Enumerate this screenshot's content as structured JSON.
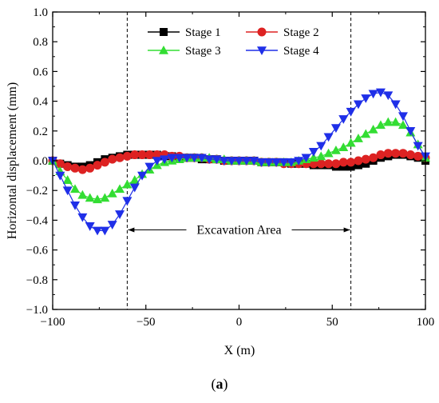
{
  "panel_label": {
    "open": "(",
    "letter": "a",
    "close": ")"
  },
  "chart_data": {
    "type": "line",
    "xlabel": "X (m)",
    "ylabel": "Horizontal displacement (mm)",
    "xlim": [
      -100,
      100
    ],
    "ylim": [
      -1.0,
      1.0
    ],
    "x_ticks": [
      -100,
      -50,
      0,
      50,
      100
    ],
    "x_tick_labels": [
      "−100",
      "−50",
      "0",
      "50",
      "100"
    ],
    "y_ticks": [
      1.0,
      0.8,
      0.6,
      0.4,
      0.2,
      0.0,
      -0.2,
      -0.4,
      -0.6,
      -0.8,
      -1.0
    ],
    "y_tick_labels": [
      "1.0",
      "0.8",
      "0.6",
      "0.4",
      "0.2",
      "0.0",
      "−0.2",
      "−0.4",
      "−0.6",
      "−0.8",
      "−1.0"
    ],
    "grid": false,
    "legend_position": "top-right",
    "annotation": {
      "text": "Excavation Area",
      "x_from": -60,
      "x_to": 60,
      "y": -0.465
    },
    "reference_lines_x": [
      -60,
      60
    ],
    "x": [
      -100,
      -96,
      -92,
      -88,
      -84,
      -80,
      -76,
      -72,
      -68,
      -64,
      -60,
      -56,
      -52,
      -48,
      -44,
      -40,
      -36,
      -32,
      -28,
      -24,
      -20,
      -16,
      -12,
      -8,
      -4,
      0,
      4,
      8,
      12,
      16,
      20,
      24,
      28,
      32,
      36,
      40,
      44,
      48,
      52,
      56,
      60,
      64,
      68,
      72,
      76,
      80,
      84,
      88,
      92,
      96,
      100
    ],
    "series": [
      {
        "name": "Stage 1",
        "color": "#000000",
        "marker": "square",
        "values": [
          0.0,
          -0.02,
          -0.03,
          -0.04,
          -0.04,
          -0.03,
          -0.01,
          0.01,
          0.02,
          0.03,
          0.04,
          0.04,
          0.04,
          0.04,
          0.04,
          0.03,
          0.03,
          0.02,
          0.02,
          0.02,
          0.01,
          0.01,
          0.01,
          0.0,
          0.0,
          0.0,
          0.0,
          0.0,
          -0.01,
          -0.01,
          -0.01,
          -0.01,
          -0.02,
          -0.02,
          -0.02,
          -0.03,
          -0.03,
          -0.03,
          -0.04,
          -0.04,
          -0.04,
          -0.03,
          -0.02,
          0.0,
          0.02,
          0.03,
          0.04,
          0.04,
          0.03,
          0.02,
          0.0
        ]
      },
      {
        "name": "Stage 2",
        "color": "#dd2222",
        "marker": "circle",
        "values": [
          0.0,
          -0.02,
          -0.04,
          -0.05,
          -0.06,
          -0.05,
          -0.03,
          -0.01,
          0.01,
          0.02,
          0.03,
          0.04,
          0.04,
          0.04,
          0.04,
          0.04,
          0.03,
          0.03,
          0.02,
          0.02,
          0.02,
          0.01,
          0.01,
          0.0,
          0.0,
          0.0,
          0.0,
          0.0,
          -0.01,
          -0.01,
          -0.01,
          -0.02,
          -0.02,
          -0.02,
          -0.02,
          -0.02,
          -0.02,
          -0.02,
          -0.02,
          -0.01,
          -0.01,
          0.0,
          0.01,
          0.02,
          0.04,
          0.05,
          0.05,
          0.05,
          0.04,
          0.03,
          0.02
        ]
      },
      {
        "name": "Stage 3",
        "color": "#33dd33",
        "marker": "triangle-up",
        "values": [
          0.0,
          -0.07,
          -0.13,
          -0.19,
          -0.23,
          -0.25,
          -0.26,
          -0.25,
          -0.22,
          -0.19,
          -0.16,
          -0.13,
          -0.09,
          -0.06,
          -0.03,
          -0.01,
          0.0,
          0.01,
          0.02,
          0.02,
          0.02,
          0.02,
          0.01,
          0.01,
          0.0,
          0.0,
          0.0,
          0.0,
          -0.01,
          -0.01,
          -0.01,
          -0.01,
          -0.01,
          0.0,
          0.01,
          0.02,
          0.03,
          0.05,
          0.07,
          0.09,
          0.12,
          0.15,
          0.18,
          0.21,
          0.24,
          0.26,
          0.26,
          0.24,
          0.19,
          0.11,
          0.02
        ]
      },
      {
        "name": "Stage 4",
        "color": "#1f2fe8",
        "marker": "triangle-down",
        "values": [
          0.0,
          -0.1,
          -0.2,
          -0.3,
          -0.38,
          -0.44,
          -0.47,
          -0.47,
          -0.43,
          -0.36,
          -0.27,
          -0.18,
          -0.1,
          -0.04,
          0.0,
          0.01,
          0.02,
          0.02,
          0.02,
          0.02,
          0.02,
          0.01,
          0.01,
          0.0,
          0.0,
          0.0,
          0.0,
          0.0,
          -0.01,
          -0.01,
          -0.01,
          -0.01,
          -0.01,
          0.0,
          0.02,
          0.06,
          0.1,
          0.16,
          0.22,
          0.28,
          0.33,
          0.38,
          0.42,
          0.45,
          0.46,
          0.44,
          0.38,
          0.3,
          0.2,
          0.1,
          0.03
        ]
      }
    ]
  }
}
